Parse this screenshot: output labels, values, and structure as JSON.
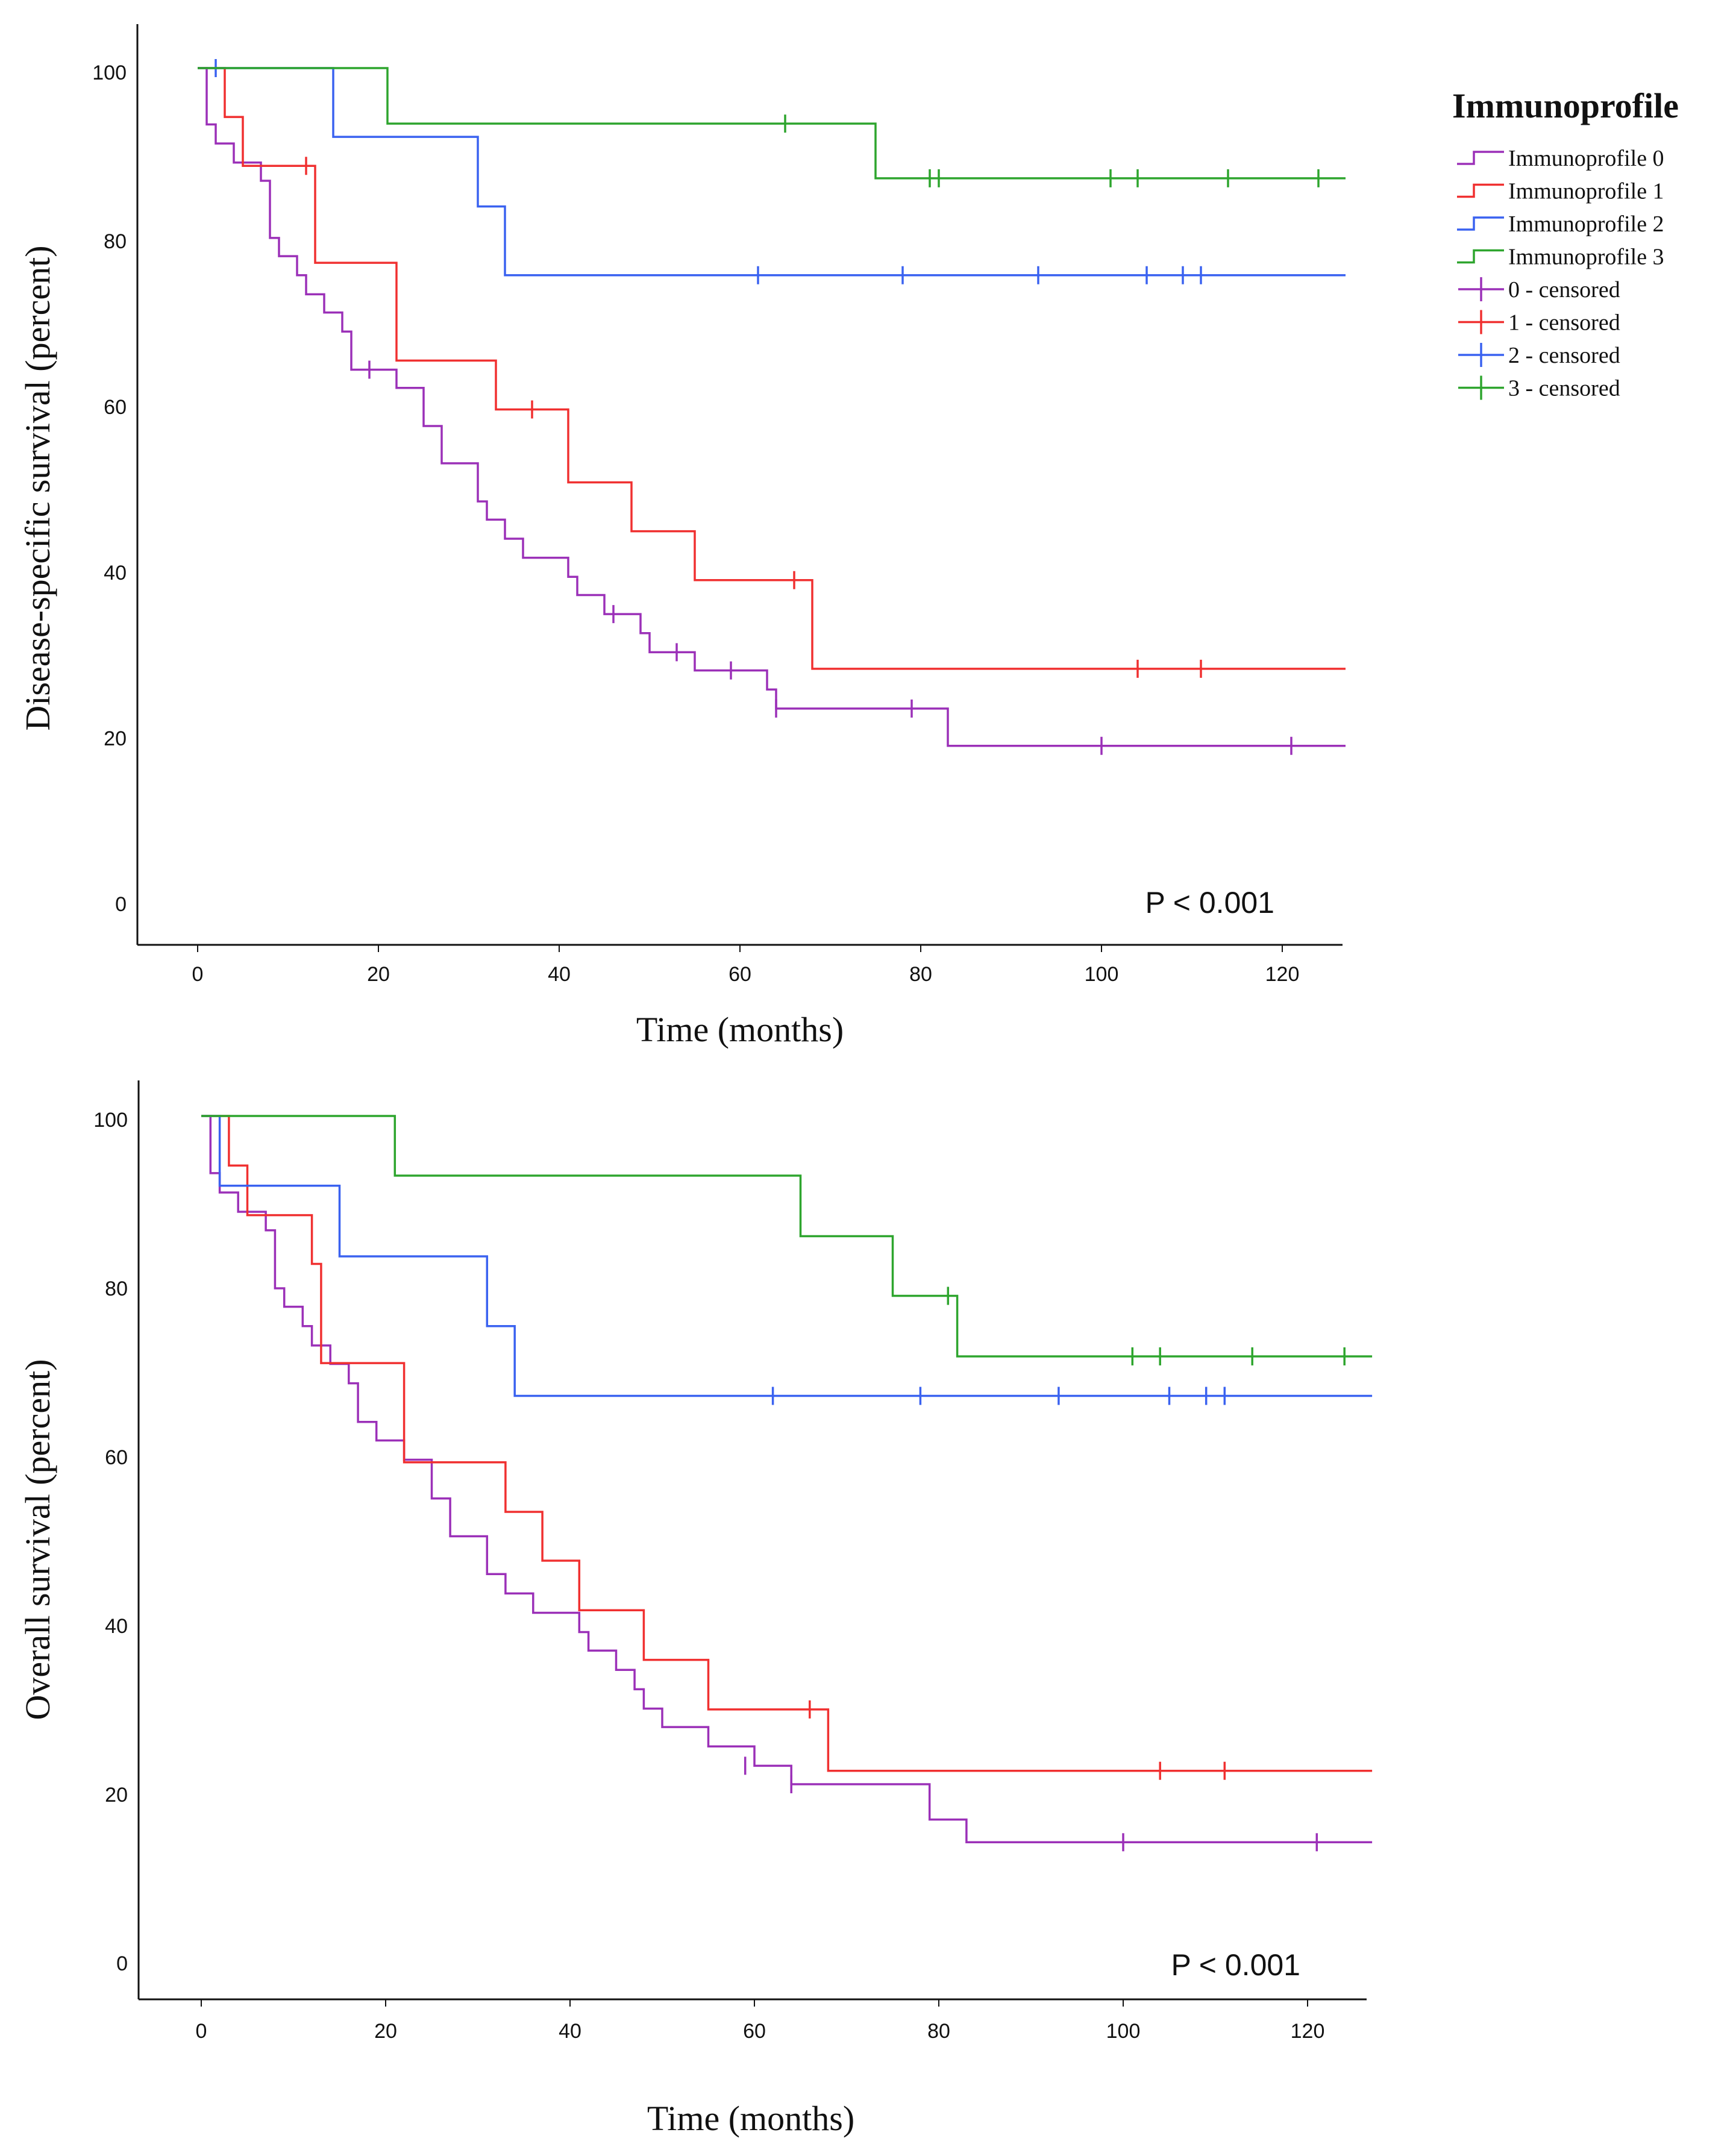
{
  "colors": {
    "0": "#9b30b8",
    "1": "#f03030",
    "2": "#3a62f0",
    "3": "#2ea52e",
    "axis": "#111111"
  },
  "legend": {
    "title": "Immunoprofile",
    "entries": [
      {
        "key": "0",
        "label": "Immunoprofile 0",
        "kind": "line"
      },
      {
        "key": "1",
        "label": "Immunoprofile 1",
        "kind": "line"
      },
      {
        "key": "2",
        "label": "Immunoprofile 2",
        "kind": "line"
      },
      {
        "key": "3",
        "label": "Immunoprofile 3",
        "kind": "line"
      },
      {
        "key": "0",
        "label": "0 - censored",
        "kind": "censor"
      },
      {
        "key": "1",
        "label": "1 - censored",
        "kind": "censor"
      },
      {
        "key": "2",
        "label": "2 - censored",
        "kind": "censor"
      },
      {
        "key": "3",
        "label": "3 - censored",
        "kind": "censor"
      }
    ]
  },
  "chart_data": [
    {
      "type": "line",
      "subtype": "kaplan-meier-step",
      "ylabel": "Disease-specific survival (percent)",
      "xlabel": "Time (months)",
      "xlim": [
        0,
        127
      ],
      "ylim": [
        0,
        100
      ],
      "xticks": [
        "0",
        "20",
        "40",
        "60",
        "80",
        "100",
        "120"
      ],
      "yticks": [
        "0",
        "20",
        "40",
        "60",
        "80",
        "100"
      ],
      "annotation": "P < 0.001",
      "series": [
        {
          "key": "0",
          "name": "Immunoprofile 0",
          "end": 127,
          "steps": [
            [
              0,
              100
            ],
            [
              1,
              93.2
            ],
            [
              2,
              90.9
            ],
            [
              4,
              88.6
            ],
            [
              7,
              86.4
            ],
            [
              8,
              79.5
            ],
            [
              9,
              77.3
            ],
            [
              11,
              75
            ],
            [
              12,
              72.7
            ],
            [
              14,
              70.5
            ],
            [
              16,
              68.2
            ],
            [
              17,
              63.6
            ],
            [
              22,
              61.4
            ],
            [
              25,
              56.8
            ],
            [
              27,
              52.3
            ],
            [
              31,
              47.7
            ],
            [
              32,
              45.5
            ],
            [
              34,
              43.2
            ],
            [
              36,
              40.9
            ],
            [
              41,
              38.6
            ],
            [
              42,
              36.4
            ],
            [
              45,
              34.1
            ],
            [
              49,
              31.8
            ],
            [
              50,
              29.5
            ],
            [
              55,
              27.3
            ],
            [
              63,
              25
            ],
            [
              64,
              22.7
            ],
            [
              83,
              18.2
            ]
          ],
          "censored": [
            [
              19,
              63.6
            ],
            [
              46,
              34.1
            ],
            [
              53,
              29.5
            ],
            [
              59,
              27.3
            ],
            [
              64,
              22.7
            ],
            [
              79,
              22.7
            ],
            [
              100,
              18.2
            ],
            [
              121,
              18.2
            ]
          ]
        },
        {
          "key": "1",
          "name": "Immunoprofile 1",
          "end": 127,
          "steps": [
            [
              0,
              100
            ],
            [
              3,
              94.1
            ],
            [
              5,
              88.2
            ],
            [
              13,
              76.5
            ],
            [
              22,
              64.7
            ],
            [
              33,
              58.8
            ],
            [
              41,
              50
            ],
            [
              48,
              44.1
            ],
            [
              55,
              38.2
            ],
            [
              68,
              27.5
            ]
          ],
          "censored": [
            [
              12,
              88.2
            ],
            [
              37,
              58.8
            ],
            [
              66,
              38.2
            ],
            [
              104,
              27.5
            ],
            [
              111,
              27.5
            ]
          ]
        },
        {
          "key": "2",
          "name": "Immunoprofile 2",
          "end": 127,
          "steps": [
            [
              0,
              100
            ],
            [
              15,
              91.7
            ],
            [
              31,
              83.3
            ],
            [
              34,
              75
            ]
          ],
          "censored": [
            [
              2,
              100
            ],
            [
              62,
              75
            ],
            [
              78,
              75
            ],
            [
              93,
              75
            ],
            [
              105,
              75
            ],
            [
              109,
              75
            ],
            [
              111,
              75
            ]
          ]
        },
        {
          "key": "3",
          "name": "Immunoprofile 3",
          "end": 127,
          "steps": [
            [
              0,
              100
            ],
            [
              21,
              93.3
            ],
            [
              75,
              86.7
            ]
          ],
          "censored": [
            [
              65,
              93.3
            ],
            [
              81,
              86.7
            ],
            [
              82,
              86.7
            ],
            [
              101,
              86.7
            ],
            [
              104,
              86.7
            ],
            [
              114,
              86.7
            ],
            [
              124,
              86.7
            ]
          ]
        }
      ]
    },
    {
      "type": "line",
      "subtype": "kaplan-meier-step",
      "ylabel": "Overall survival (percent)",
      "xlabel": "Time (months)",
      "xlim": [
        0,
        127
      ],
      "ylim": [
        0,
        100
      ],
      "xticks": [
        "0",
        "20",
        "40",
        "60",
        "80",
        "100",
        "120"
      ],
      "yticks": [
        "0",
        "20",
        "40",
        "60",
        "80",
        "100"
      ],
      "annotation": "P < 0.001",
      "series": [
        {
          "key": "0",
          "name": "Immunoprofile 0",
          "end": 127,
          "steps": [
            [
              0,
              100
            ],
            [
              1,
              93.2
            ],
            [
              2,
              90.9
            ],
            [
              4,
              88.6
            ],
            [
              7,
              86.4
            ],
            [
              8,
              79.5
            ],
            [
              9,
              77.3
            ],
            [
              11,
              75
            ],
            [
              12,
              72.7
            ],
            [
              14,
              70.5
            ],
            [
              16,
              68.2
            ],
            [
              17,
              63.6
            ],
            [
              19,
              61.4
            ],
            [
              22,
              59.1
            ],
            [
              25,
              54.5
            ],
            [
              27,
              50
            ],
            [
              31,
              45.5
            ],
            [
              33,
              43.2
            ],
            [
              36,
              40.9
            ],
            [
              41,
              38.6
            ],
            [
              42,
              36.4
            ],
            [
              45,
              34.1
            ],
            [
              47,
              31.8
            ],
            [
              48,
              29.5
            ],
            [
              50,
              27.3
            ],
            [
              55,
              25
            ],
            [
              60,
              22.7
            ],
            [
              64,
              20.5
            ],
            [
              79,
              16.3
            ],
            [
              83,
              13.6
            ]
          ],
          "censored": [
            [
              59,
              22.7
            ],
            [
              64,
              20.5
            ],
            [
              100,
              13.6
            ],
            [
              121,
              13.6
            ]
          ]
        },
        {
          "key": "1",
          "name": "Immunoprofile 1",
          "end": 127,
          "steps": [
            [
              0,
              100
            ],
            [
              3,
              94.1
            ],
            [
              5,
              88.2
            ],
            [
              12,
              82.4
            ],
            [
              13,
              70.6
            ],
            [
              22,
              58.8
            ],
            [
              33,
              52.9
            ],
            [
              37,
              47.1
            ],
            [
              41,
              41.2
            ],
            [
              48,
              35.3
            ],
            [
              55,
              29.4
            ],
            [
              68,
              22.1
            ]
          ],
          "censored": [
            [
              66,
              29.4
            ],
            [
              104,
              22.1
            ],
            [
              111,
              22.1
            ]
          ]
        },
        {
          "key": "2",
          "name": "Immunoprofile 2",
          "end": 127,
          "steps": [
            [
              0,
              100
            ],
            [
              2,
              91.7
            ],
            [
              15,
              83.3
            ],
            [
              31,
              75
            ],
            [
              34,
              66.7
            ]
          ],
          "censored": [
            [
              62,
              66.7
            ],
            [
              78,
              66.7
            ],
            [
              93,
              66.7
            ],
            [
              105,
              66.7
            ],
            [
              109,
              66.7
            ],
            [
              111,
              66.7
            ]
          ]
        },
        {
          "key": "3",
          "name": "Immunoprofile 3",
          "end": 127,
          "steps": [
            [
              0,
              100
            ],
            [
              21,
              92.9
            ],
            [
              65,
              85.7
            ],
            [
              75,
              78.6
            ],
            [
              82,
              71.4
            ]
          ],
          "censored": [
            [
              81,
              78.6
            ],
            [
              101,
              71.4
            ],
            [
              104,
              71.4
            ],
            [
              114,
              71.4
            ],
            [
              124,
              71.4
            ]
          ]
        }
      ]
    }
  ]
}
